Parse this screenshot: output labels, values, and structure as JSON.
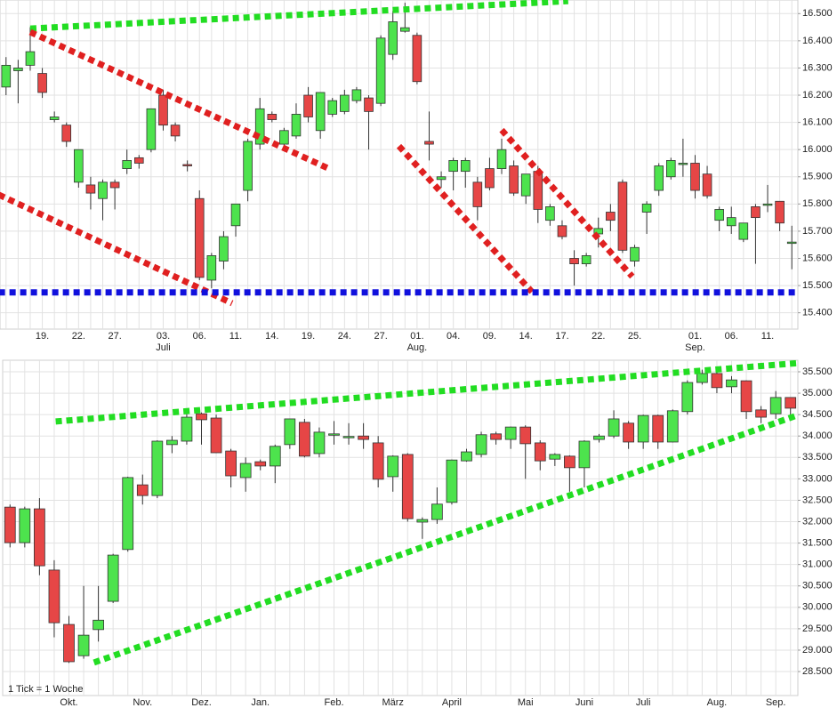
{
  "chart_data": [
    {
      "type": "candlestick",
      "categories": [
        null,
        null,
        null,
        "19.",
        null,
        null,
        "22.",
        null,
        null,
        "27.",
        null,
        null,
        null,
        "03.",
        null,
        null,
        "06.",
        null,
        null,
        "11.",
        null,
        null,
        "14.",
        null,
        null,
        "19.",
        null,
        null,
        "24.",
        null,
        null,
        "27.",
        null,
        null,
        "01.",
        null,
        null,
        "04.",
        null,
        null,
        "09.",
        null,
        null,
        "14.",
        null,
        null,
        "17.",
        null,
        null,
        "22.",
        null,
        null,
        "25.",
        null,
        null,
        null,
        null,
        "01.",
        null,
        null,
        "06.",
        null,
        null,
        "11.",
        null,
        null
      ],
      "months": [
        null,
        null,
        null,
        null,
        null,
        null,
        null,
        null,
        null,
        null,
        null,
        null,
        null,
        "Juli",
        null,
        null,
        null,
        null,
        null,
        null,
        null,
        null,
        null,
        null,
        null,
        null,
        null,
        null,
        null,
        null,
        null,
        null,
        null,
        null,
        "Aug.",
        null,
        null,
        null,
        null,
        null,
        null,
        null,
        null,
        null,
        null,
        null,
        null,
        null,
        null,
        null,
        null,
        null,
        null,
        null,
        null,
        null,
        null,
        "Sep.",
        null,
        null,
        null,
        null,
        null,
        null,
        null,
        null
      ],
      "open": [
        16.23,
        16.29,
        16.31,
        16.28,
        16.11,
        16.09,
        15.88,
        15.87,
        15.82,
        15.88,
        15.93,
        15.97,
        16.0,
        16.2,
        16.09,
        15.945,
        15.82,
        15.52,
        15.59,
        15.72,
        15.85,
        16.02,
        16.13,
        16.02,
        16.05,
        16.2,
        16.07,
        16.13,
        16.14,
        16.18,
        16.19,
        16.17,
        16.35,
        16.435,
        16.42,
        16.03,
        15.89,
        15.92,
        15.92,
        15.88,
        15.93,
        15.93,
        15.94,
        15.83,
        15.92,
        15.74,
        15.72,
        15.6,
        15.58,
        15.69,
        15.77,
        15.88,
        15.59,
        15.77,
        15.85,
        15.9,
        15.945,
        15.95,
        15.91,
        15.74,
        15.72,
        15.67,
        15.79,
        15.795,
        15.81,
        15.655
      ],
      "high": [
        16.34,
        16.33,
        16.45,
        16.3,
        16.14,
        16.1,
        16.0,
        15.9,
        15.89,
        15.89,
        16.0,
        15.98,
        16.15,
        16.22,
        16.1,
        15.96,
        15.85,
        15.62,
        15.7,
        15.8,
        16.04,
        16.19,
        16.14,
        16.08,
        16.17,
        16.23,
        16.21,
        16.19,
        16.22,
        16.23,
        16.2,
        16.42,
        16.51,
        16.54,
        16.43,
        16.14,
        15.92,
        15.97,
        15.97,
        15.9,
        15.97,
        16.04,
        15.96,
        15.91,
        15.94,
        15.8,
        15.74,
        15.63,
        15.62,
        15.75,
        15.8,
        15.89,
        15.65,
        15.81,
        15.95,
        15.97,
        16.04,
        15.98,
        15.94,
        15.79,
        15.79,
        15.73,
        15.8,
        15.87,
        15.81,
        15.72
      ],
      "low": [
        16.2,
        16.17,
        16.29,
        16.19,
        16.1,
        16.01,
        15.86,
        15.78,
        15.74,
        15.78,
        15.91,
        15.93,
        15.99,
        16.07,
        16.03,
        15.92,
        15.52,
        15.49,
        15.56,
        15.68,
        15.81,
        16.0,
        16.1,
        16.01,
        16.04,
        16.1,
        16.04,
        16.12,
        16.13,
        16.17,
        16.0,
        16.16,
        16.33,
        16.43,
        16.24,
        15.96,
        15.86,
        15.85,
        15.86,
        15.74,
        15.85,
        15.91,
        15.83,
        15.8,
        15.73,
        15.72,
        15.67,
        15.5,
        15.57,
        15.64,
        15.7,
        15.62,
        15.57,
        15.69,
        15.83,
        15.89,
        15.9,
        15.82,
        15.82,
        15.7,
        15.69,
        15.66,
        15.58,
        15.77,
        15.7,
        15.56
      ],
      "close": [
        16.31,
        16.3,
        16.36,
        16.21,
        16.12,
        16.03,
        16.0,
        15.84,
        15.88,
        15.86,
        15.96,
        15.95,
        16.15,
        16.09,
        16.05,
        15.94,
        15.53,
        15.61,
        15.68,
        15.8,
        16.03,
        16.15,
        16.11,
        16.07,
        16.13,
        16.12,
        16.21,
        16.18,
        16.2,
        16.22,
        16.14,
        16.41,
        16.47,
        16.448,
        16.25,
        16.02,
        15.9,
        15.96,
        15.96,
        15.79,
        15.86,
        16.0,
        15.84,
        15.91,
        15.78,
        15.79,
        15.68,
        15.58,
        15.61,
        15.71,
        15.74,
        15.63,
        15.64,
        15.8,
        15.94,
        15.96,
        15.95,
        15.85,
        15.83,
        15.78,
        15.75,
        15.73,
        15.75,
        15.8,
        15.73,
        15.66
      ],
      "up_color": "#4de34d",
      "down_color": "#e64646",
      "ylim": [
        15.34,
        16.55
      ],
      "yticks": [
        {
          "value": 15.4,
          "label": "15.400"
        },
        {
          "value": 15.5,
          "label": "15.500"
        },
        {
          "value": 15.6,
          "label": "15.600"
        },
        {
          "value": 15.7,
          "label": "15.700"
        },
        {
          "value": 15.8,
          "label": "15.800"
        },
        {
          "value": 15.9,
          "label": "15.900"
        },
        {
          "value": 16.0,
          "label": "16.000"
        },
        {
          "value": 16.1,
          "label": "16.100"
        },
        {
          "value": 16.2,
          "label": "16.200"
        },
        {
          "value": 16.3,
          "label": "16.300"
        },
        {
          "value": 16.4,
          "label": "16.400"
        },
        {
          "value": 16.5,
          "label": "16.500"
        }
      ],
      "trendlines": [
        {
          "color": "#22dd22",
          "x": [
            2,
            46.5
          ],
          "y": [
            16.445,
            16.546
          ]
        },
        {
          "color": "#e02020",
          "x": [
            2,
            26.6
          ],
          "y": [
            16.432,
            15.932
          ]
        },
        {
          "color": "#e02020",
          "x": [
            -0.6,
            18.7
          ],
          "y": [
            15.834,
            15.435
          ]
        },
        {
          "color": "#e02020",
          "x": [
            32.5,
            43.5
          ],
          "y": [
            16.013,
            15.477
          ]
        },
        {
          "color": "#e02020",
          "x": [
            41,
            51.8
          ],
          "y": [
            16.072,
            15.533
          ]
        },
        {
          "color": "#1010dd",
          "x": [
            -0.6,
            65.5
          ],
          "y": [
            15.475,
            15.475
          ]
        }
      ]
    },
    {
      "type": "candlestick",
      "note": "1 Tick = 1 Woche",
      "categories": [
        null,
        null,
        null,
        null,
        "Okt.",
        null,
        null,
        null,
        null,
        "Nov.",
        null,
        null,
        null,
        "Dez.",
        null,
        null,
        null,
        "Jan.",
        null,
        null,
        null,
        null,
        "Feb.",
        null,
        null,
        null,
        "März",
        null,
        null,
        null,
        "April",
        null,
        null,
        null,
        null,
        "Mai",
        null,
        null,
        null,
        "Juni",
        null,
        null,
        null,
        "Juli",
        null,
        null,
        null,
        null,
        "Aug.",
        null,
        null,
        null,
        "Sep.",
        null
      ],
      "open": [
        32.34,
        31.51,
        32.3,
        30.87,
        29.6,
        28.87,
        29.48,
        30.14,
        31.35,
        32.86,
        32.61,
        33.8,
        33.88,
        34.52,
        34.42,
        33.65,
        33.03,
        33.4,
        33.3,
        33.8,
        34.32,
        33.59,
        34.04,
        33.98,
        34.0,
        33.84,
        33.05,
        33.57,
        31.99,
        32.05,
        32.45,
        33.42,
        33.57,
        34.05,
        33.92,
        34.21,
        33.84,
        33.46,
        33.53,
        33.26,
        33.92,
        34.0,
        34.3,
        33.86,
        34.48,
        33.86,
        34.57,
        35.25,
        35.46,
        35.15,
        35.29,
        34.61,
        34.52,
        34.9
      ],
      "high": [
        32.4,
        32.35,
        32.55,
        31.1,
        29.8,
        30.5,
        30.5,
        31.25,
        33.05,
        33.1,
        33.9,
        34.0,
        34.6,
        34.55,
        34.5,
        33.7,
        33.5,
        33.45,
        33.8,
        34.4,
        34.4,
        34.2,
        34.35,
        34.3,
        34.3,
        34.0,
        33.55,
        33.6,
        32.1,
        32.8,
        33.45,
        33.7,
        34.1,
        34.1,
        34.22,
        34.25,
        33.9,
        33.6,
        33.55,
        33.9,
        34.05,
        34.6,
        34.35,
        34.5,
        34.5,
        34.62,
        35.3,
        35.55,
        35.55,
        35.4,
        35.3,
        34.7,
        35.05,
        34.9
      ],
      "low": [
        31.4,
        31.4,
        30.75,
        29.3,
        28.7,
        28.8,
        29.2,
        30.1,
        31.3,
        32.4,
        32.55,
        33.6,
        33.8,
        33.8,
        33.6,
        32.8,
        32.7,
        33.2,
        32.9,
        33.7,
        33.5,
        33.5,
        33.8,
        33.8,
        33.7,
        32.8,
        32.7,
        32.0,
        31.6,
        31.95,
        32.4,
        33.4,
        33.5,
        33.8,
        33.7,
        33.0,
        33.2,
        33.3,
        32.7,
        32.8,
        33.85,
        33.95,
        33.7,
        33.7,
        33.7,
        33.85,
        34.5,
        35.2,
        35.0,
        35.0,
        34.4,
        34.3,
        34.4,
        34.4
      ],
      "close": [
        31.51,
        32.3,
        30.97,
        29.64,
        28.73,
        29.35,
        29.7,
        31.22,
        33.03,
        32.61,
        33.88,
        33.9,
        34.44,
        34.38,
        33.61,
        33.07,
        33.36,
        33.3,
        33.76,
        34.4,
        33.53,
        34.09,
        34.05,
        33.99,
        33.92,
        32.99,
        33.53,
        32.07,
        32.05,
        32.41,
        33.44,
        33.63,
        34.03,
        33.92,
        34.21,
        33.82,
        33.42,
        33.57,
        33.26,
        33.88,
        34.0,
        34.4,
        33.86,
        34.48,
        33.86,
        34.59,
        35.25,
        35.46,
        35.13,
        35.31,
        34.57,
        34.44,
        34.9,
        34.65
      ],
      "up_color": "#4de34d",
      "down_color": "#e64646",
      "ylim": [
        27.94,
        35.77
      ],
      "yticks": [
        {
          "value": 28.5,
          "label": "28.500"
        },
        {
          "value": 29.0,
          "label": "29.000"
        },
        {
          "value": 29.5,
          "label": "29.500"
        },
        {
          "value": 30.0,
          "label": "30.000"
        },
        {
          "value": 30.5,
          "label": "30.500"
        },
        {
          "value": 31.0,
          "label": "31.000"
        },
        {
          "value": 31.5,
          "label": "31.500"
        },
        {
          "value": 32.0,
          "label": "32.000"
        },
        {
          "value": 32.5,
          "label": "32.500"
        },
        {
          "value": 33.0,
          "label": "33.000"
        },
        {
          "value": 33.5,
          "label": "33.500"
        },
        {
          "value": 34.0,
          "label": "34.000"
        },
        {
          "value": 34.5,
          "label": "34.500"
        },
        {
          "value": 35.0,
          "label": "35.000"
        },
        {
          "value": 35.5,
          "label": "35.500"
        }
      ],
      "trendlines": [
        {
          "color": "#22dd22",
          "x": [
            3.1,
            54.5
          ],
          "y": [
            34.34,
            35.73
          ]
        },
        {
          "color": "#22dd22",
          "x": [
            5.7,
            53.6
          ],
          "y": [
            28.71,
            34.5
          ]
        }
      ]
    }
  ]
}
